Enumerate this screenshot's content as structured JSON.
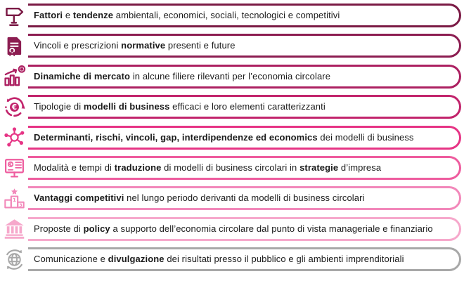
{
  "page": {
    "background": "#ffffff",
    "text_color": "#1a1a1a"
  },
  "rows": [
    {
      "icon": "signpost-icon",
      "color": "#7b1a45",
      "segments": [
        {
          "text": "Fattori",
          "bold": true
        },
        {
          "text": " e ",
          "bold": false
        },
        {
          "text": "tendenze",
          "bold": true
        },
        {
          "text": " ambientali, economici, sociali, tecnologici e competitivi",
          "bold": false
        }
      ]
    },
    {
      "icon": "certificate-icon",
      "color": "#8c1d51",
      "segments": [
        {
          "text": "Vincoli e prescrizioni ",
          "bold": false
        },
        {
          "text": "normative",
          "bold": true
        },
        {
          "text": " presenti e future",
          "bold": false
        }
      ]
    },
    {
      "icon": "bar-chart-growth-icon",
      "color": "#ac2061",
      "segments": [
        {
          "text": "Dinamiche di mercato",
          "bold": true
        },
        {
          "text": " in alcune filiere rilevanti per l’economia circolare",
          "bold": false
        }
      ]
    },
    {
      "icon": "circular-euro-icon",
      "color": "#c2246c",
      "segments": [
        {
          "text": "Tipologie di ",
          "bold": false
        },
        {
          "text": "modelli di business",
          "bold": true
        },
        {
          "text": " efficaci e loro elementi caratterizzanti",
          "bold": false
        }
      ]
    },
    {
      "icon": "network-icon",
      "color": "#e63485",
      "segments": [
        {
          "text": "Determinanti, rischi, vincoli, gap, interdipendenze ed economics",
          "bold": true
        },
        {
          "text": " dei modelli di business",
          "bold": false
        }
      ]
    },
    {
      "icon": "presentation-euro-icon",
      "color": "#ee5c9e",
      "segments": [
        {
          "text": "Modalità e tempi di ",
          "bold": false
        },
        {
          "text": "traduzione",
          "bold": true
        },
        {
          "text": " di modelli di business circolari in ",
          "bold": false
        },
        {
          "text": "strategie",
          "bold": true
        },
        {
          "text": " d’impresa",
          "bold": false
        }
      ]
    },
    {
      "icon": "podium-icon",
      "color": "#f288ba",
      "segments": [
        {
          "text": "Vantaggi competitivi",
          "bold": true
        },
        {
          "text": " nel lungo periodo derivanti da modelli di business circolari",
          "bold": false
        }
      ]
    },
    {
      "icon": "bank-icon",
      "color": "#f6a8cb",
      "segments": [
        {
          "text": "Proposte di ",
          "bold": false
        },
        {
          "text": "policy",
          "bold": true
        },
        {
          "text": " a supporto dell’economia circolare dal punto di vista manageriale e finanziario",
          "bold": false
        }
      ]
    },
    {
      "icon": "globe-recycle-icon",
      "color": "#a8a8a8",
      "segments": [
        {
          "text": "Comunicazione e ",
          "bold": false
        },
        {
          "text": "divulgazione",
          "bold": true
        },
        {
          "text": " dei risultati presso il pubblico e gli ambienti imprenditoriali",
          "bold": false
        }
      ]
    }
  ]
}
